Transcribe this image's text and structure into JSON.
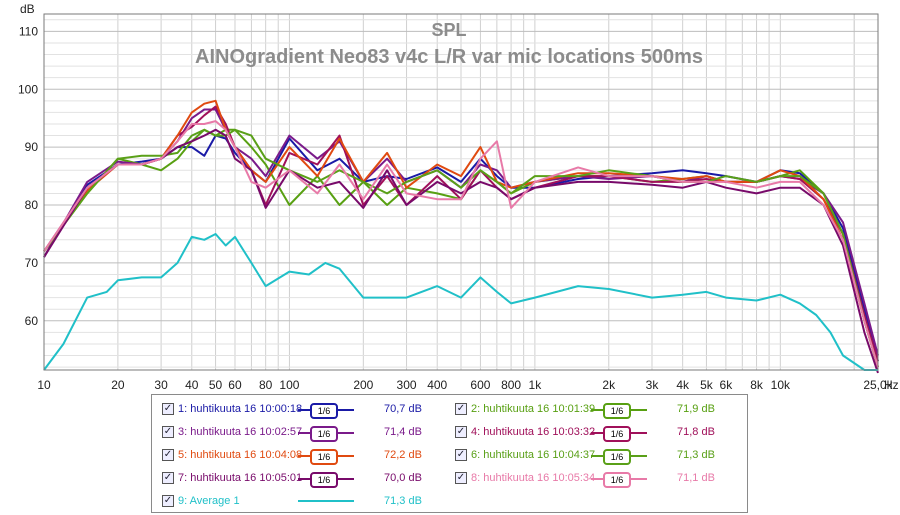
{
  "chart_data": {
    "type": "line",
    "title": "SPL",
    "subtitle": "AINOgradient Neo83 v4c L/R var mic locations 500ms",
    "ylabel": "dB",
    "xlabel": "Hz",
    "x_scale": "log",
    "xlim": [
      10,
      25000
    ],
    "ylim": [
      51.5,
      113
    ],
    "y_ticks": [
      {
        "v": 60,
        "label": "60"
      },
      {
        "v": 70,
        "label": "70"
      },
      {
        "v": 80,
        "label": "80"
      },
      {
        "v": 90,
        "label": "90"
      },
      {
        "v": 100,
        "label": "100"
      },
      {
        "v": 110,
        "label": "110"
      }
    ],
    "x_ticks": [
      {
        "v": 10,
        "label": "10"
      },
      {
        "v": 20,
        "label": "20"
      },
      {
        "v": 30,
        "label": "30"
      },
      {
        "v": 40,
        "label": "40"
      },
      {
        "v": 50,
        "label": "50"
      },
      {
        "v": 60,
        "label": "60"
      },
      {
        "v": 80,
        "label": "80"
      },
      {
        "v": 100,
        "label": "100"
      },
      {
        "v": 200,
        "label": "200"
      },
      {
        "v": 300,
        "label": "300"
      },
      {
        "v": 400,
        "label": "400"
      },
      {
        "v": 600,
        "label": "600"
      },
      {
        "v": 800,
        "label": "800"
      },
      {
        "v": 1000,
        "label": "1k"
      },
      {
        "v": 2000,
        "label": "2k"
      },
      {
        "v": 3000,
        "label": "3k"
      },
      {
        "v": 4000,
        "label": "4k"
      },
      {
        "v": 5000,
        "label": "5k"
      },
      {
        "v": 6000,
        "label": "6k"
      },
      {
        "v": 8000,
        "label": "8k"
      },
      {
        "v": 10000,
        "label": "10k"
      },
      {
        "v": 25000,
        "label": "25,0k"
      }
    ],
    "grid": true,
    "legend_position": "bottom",
    "series": [
      {
        "name": "1: huhtikuuta 16 10:00:18",
        "smoothing": "1/6",
        "level": "70,7 dB",
        "color": "#1a1aa6",
        "x": [
          10,
          15,
          20,
          25,
          30,
          35,
          40,
          45,
          50,
          55,
          60,
          70,
          80,
          100,
          130,
          160,
          200,
          250,
          300,
          400,
          500,
          600,
          700,
          800,
          1000,
          1500,
          2000,
          3000,
          4000,
          5000,
          6000,
          8000,
          10000,
          12000,
          15000,
          18000,
          22000,
          25000
        ],
        "y": [
          71,
          83.5,
          87,
          87.5,
          88,
          90,
          90,
          88.5,
          92,
          91.5,
          89,
          86,
          84,
          91.5,
          86,
          88,
          84,
          85,
          84.5,
          86.5,
          84,
          88,
          85,
          83,
          83,
          84.5,
          85,
          85.5,
          86,
          85.5,
          85,
          84,
          86,
          85.5,
          82,
          76,
          62,
          53
        ]
      },
      {
        "name": "2: huhtikuuta 16 10:01:39",
        "smoothing": "1/6",
        "level": "71,9 dB",
        "color": "#58a012",
        "x": [
          10,
          15,
          20,
          25,
          30,
          35,
          40,
          45,
          50,
          55,
          60,
          70,
          80,
          100,
          130,
          160,
          200,
          250,
          300,
          400,
          500,
          600,
          700,
          800,
          1000,
          1500,
          2000,
          3000,
          4000,
          5000,
          6000,
          8000,
          10000,
          12000,
          15000,
          18000,
          22000,
          25000
        ],
        "y": [
          72,
          82,
          88,
          87,
          86,
          88,
          91,
          93,
          92,
          93,
          93,
          90,
          87,
          80,
          85,
          80,
          84,
          80,
          83,
          82,
          81,
          86,
          84,
          82,
          84,
          85,
          85,
          84,
          84.5,
          85,
          84,
          84,
          85,
          86,
          82,
          75,
          60,
          52
        ]
      },
      {
        "name": "3: huhtikuuta 16 10:02:57",
        "smoothing": "1/6",
        "level": "71,4 dB",
        "color": "#7a1a8a",
        "x": [
          10,
          15,
          20,
          25,
          30,
          35,
          40,
          45,
          50,
          55,
          60,
          70,
          80,
          100,
          130,
          160,
          200,
          250,
          300,
          400,
          500,
          600,
          700,
          800,
          1000,
          1500,
          2000,
          3000,
          4000,
          5000,
          6000,
          8000,
          10000,
          12000,
          15000,
          18000,
          22000,
          25000
        ],
        "y": [
          71,
          84,
          87.5,
          87,
          88,
          91,
          95,
          96.5,
          96.5,
          93,
          90,
          88,
          85,
          92,
          88,
          91,
          84,
          88,
          84,
          86,
          83,
          87,
          86,
          83,
          84,
          85,
          84.5,
          85,
          84,
          85,
          84,
          84,
          85,
          84.5,
          82,
          77,
          63,
          54
        ]
      },
      {
        "name": "4: huhtikuuta 16 10:03:32",
        "smoothing": "1/6",
        "level": "71,8 dB",
        "color": "#a0105a",
        "x": [
          10,
          15,
          20,
          25,
          30,
          35,
          40,
          45,
          50,
          55,
          60,
          70,
          80,
          100,
          130,
          160,
          200,
          250,
          300,
          400,
          500,
          600,
          700,
          800,
          1000,
          1500,
          2000,
          3000,
          4000,
          5000,
          6000,
          8000,
          10000,
          12000,
          15000,
          18000,
          22000,
          25000
        ],
        "y": [
          72,
          83,
          87,
          87,
          88,
          92,
          93.5,
          95.5,
          97,
          94,
          90,
          86,
          80,
          89,
          87,
          92,
          80,
          85,
          80,
          85,
          81,
          86,
          83,
          81,
          83,
          85,
          85,
          84,
          84,
          84.5,
          84,
          84,
          85,
          84.5,
          81,
          75,
          61,
          53
        ]
      },
      {
        "name": "5: huhtikuuta 16 10:04:08",
        "smoothing": "1/6",
        "level": "72,2 dB",
        "color": "#e04a10",
        "x": [
          10,
          15,
          20,
          25,
          30,
          35,
          40,
          45,
          50,
          55,
          60,
          70,
          80,
          100,
          130,
          160,
          200,
          250,
          300,
          400,
          500,
          600,
          700,
          800,
          1000,
          1500,
          2000,
          3000,
          4000,
          5000,
          6000,
          8000,
          10000,
          12000,
          15000,
          18000,
          22000,
          25000
        ],
        "y": [
          72,
          82.5,
          87,
          87,
          88,
          92,
          96,
          97.5,
          98,
          93,
          90,
          86,
          84,
          90,
          85,
          91.5,
          84,
          89,
          83,
          87,
          85,
          90,
          84,
          83,
          84,
          85.5,
          85.5,
          85,
          84.5,
          85,
          84,
          84,
          86,
          85,
          81,
          74,
          60,
          52
        ]
      },
      {
        "name": "6: huhtikuuta 16 10:04:37",
        "smoothing": "1/6",
        "level": "71,3 dB",
        "color": "#5aa018",
        "x": [
          10,
          15,
          20,
          25,
          30,
          35,
          40,
          45,
          50,
          55,
          60,
          70,
          80,
          100,
          130,
          160,
          200,
          250,
          300,
          400,
          500,
          600,
          700,
          800,
          1000,
          1500,
          2000,
          3000,
          4000,
          5000,
          6000,
          8000,
          10000,
          12000,
          15000,
          18000,
          22000,
          25000
        ],
        "y": [
          72,
          82,
          88,
          88.5,
          88.5,
          89,
          92,
          93,
          92,
          92,
          93,
          92,
          88,
          86,
          84,
          86,
          84,
          82,
          84,
          86,
          83,
          86,
          84,
          82,
          85,
          85,
          86,
          85,
          84,
          84,
          85,
          84,
          85,
          85,
          82,
          75,
          60,
          52
        ]
      },
      {
        "name": "7: huhtikuuta 16 10:05:01",
        "smoothing": "1/6",
        "level": "70,0 dB",
        "color": "#780a6a",
        "x": [
          10,
          15,
          20,
          25,
          30,
          35,
          40,
          45,
          50,
          55,
          60,
          70,
          80,
          100,
          130,
          160,
          200,
          250,
          300,
          400,
          500,
          600,
          700,
          800,
          1000,
          1500,
          2000,
          3000,
          4000,
          5000,
          6000,
          8000,
          10000,
          12000,
          15000,
          18000,
          22000,
          25000
        ],
        "y": [
          71,
          83,
          87,
          87,
          88,
          90,
          91,
          92,
          93,
          92,
          88,
          86,
          79.5,
          86,
          83,
          84,
          79.5,
          86,
          80,
          84,
          82,
          84,
          83,
          81,
          83,
          84,
          84,
          83.5,
          83,
          84,
          83,
          82,
          83,
          83,
          80,
          73,
          58,
          51
        ]
      },
      {
        "name": "8: huhtikuuta 16 10:05:34",
        "smoothing": "1/6",
        "level": "71,1 dB",
        "color": "#e87aa8",
        "x": [
          10,
          15,
          20,
          25,
          30,
          35,
          40,
          45,
          50,
          55,
          60,
          70,
          80,
          100,
          130,
          160,
          200,
          250,
          300,
          400,
          500,
          600,
          700,
          800,
          1000,
          1500,
          2000,
          3000,
          4000,
          5000,
          6000,
          8000,
          10000,
          12000,
          15000,
          18000,
          22000,
          25000
        ],
        "y": [
          72,
          83,
          87,
          87,
          88,
          91,
          94,
          94,
          94.5,
          93,
          90,
          84,
          83,
          86,
          82,
          87,
          81,
          87,
          82,
          81,
          81,
          88,
          91,
          79.5,
          84,
          86.5,
          85,
          85,
          84,
          84,
          84,
          83,
          84,
          84,
          80,
          74,
          60,
          52
        ]
      },
      {
        "name": "9: Average 1",
        "smoothing": "",
        "level": "71,3 dB",
        "color": "#20c0c8",
        "x": [
          10,
          12,
          15,
          18,
          20,
          25,
          30,
          35,
          40,
          45,
          50,
          55,
          60,
          70,
          80,
          100,
          120,
          140,
          160,
          200,
          250,
          300,
          400,
          500,
          600,
          700,
          800,
          1000,
          1500,
          2000,
          3000,
          4000,
          5000,
          6000,
          8000,
          10000,
          12000,
          14000,
          16000,
          18000,
          22000,
          25000
        ],
        "y": [
          51.5,
          56,
          64,
          65,
          67,
          67.5,
          67.5,
          70,
          74.5,
          74,
          75,
          73,
          74.5,
          70,
          66,
          68.5,
          68,
          70,
          69,
          64,
          64,
          64,
          66,
          64,
          67.5,
          65,
          63,
          64,
          66,
          65.5,
          64,
          64.5,
          65,
          64,
          63.5,
          64.5,
          63,
          61,
          58,
          54,
          51.5,
          51.5
        ]
      }
    ]
  }
}
